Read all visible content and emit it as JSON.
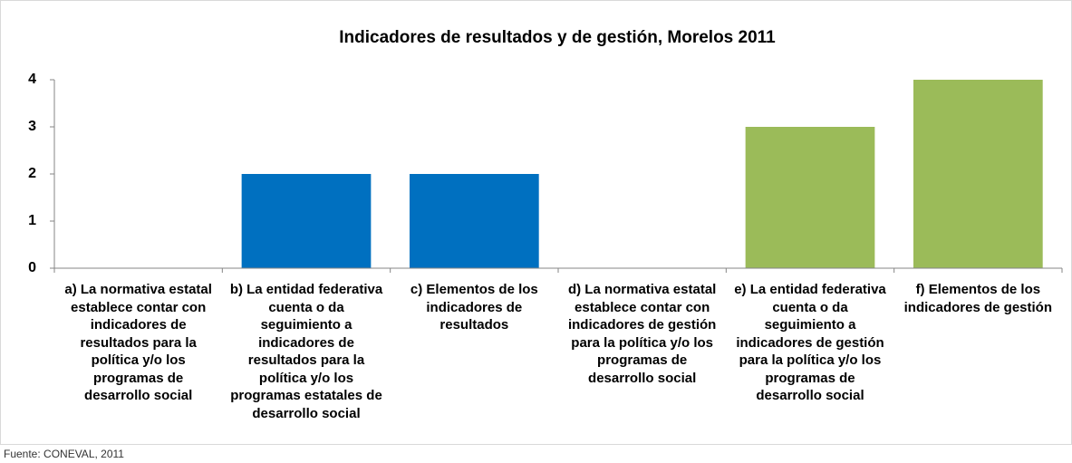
{
  "chart_data": {
    "type": "bar",
    "title": "Indicadores de resultados y de gestión, Morelos 2011",
    "categories": [
      "a) La normativa estatal establece contar con indicadores de resultados para la política y/o los programas de desarrollo social",
      "b) La entidad federativa cuenta o da seguimiento a indicadores de resultados para la política y/o los programas estatales de desarrollo social",
      "c) Elementos de los indicadores de resultados",
      "d) La normativa estatal establece contar con indicadores de gestión para la política y/o los programas de desarrollo social",
      "e) La entidad federativa cuenta o da seguimiento a indicadores de gestión para la política y/o los programas de desarrollo social",
      "f) Elementos de los indicadores de gestión"
    ],
    "values": [
      0,
      2,
      2,
      0,
      3,
      4
    ],
    "colors": [
      "#0070c0",
      "#0070c0",
      "#0070c0",
      "#9bbb59",
      "#9bbb59",
      "#9bbb59"
    ],
    "ylim": [
      0,
      4
    ],
    "yticks": [
      0,
      1,
      2,
      3,
      4
    ],
    "grid": false,
    "source": "Fuente: CONEVAL, 2011"
  }
}
